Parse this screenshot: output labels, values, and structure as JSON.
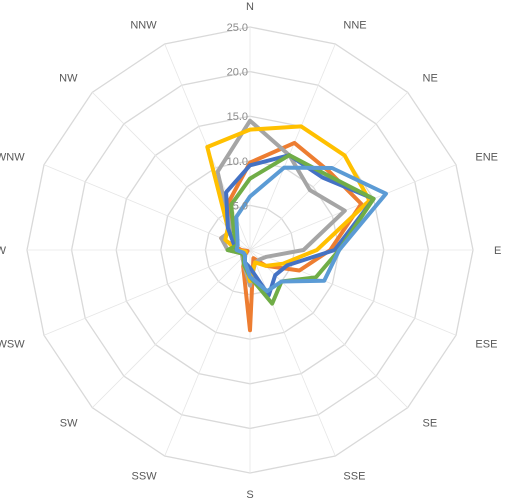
{
  "chart_data": {
    "type": "radar",
    "directions": [
      "N",
      "NNE",
      "NE",
      "ENE",
      "E",
      "ESE",
      "SE",
      "SSE",
      "S",
      "SSW",
      "SW",
      "WSW",
      "W",
      "WNW",
      "NW",
      "NNW"
    ],
    "ticks": [
      "5.0",
      "10.0",
      "15.0",
      "20.0",
      "25.0"
    ],
    "rmax": 25,
    "ring_count": 5,
    "grid": true,
    "legend": "none",
    "series": [
      {
        "color": "#ed7d31",
        "values": [
          9.8,
          13.0,
          12.5,
          13.5,
          9.0,
          6.0,
          2.5,
          1.0,
          9.0,
          2.0,
          0.8,
          0.3,
          1.0,
          3.5,
          3.0,
          6.0
        ]
      },
      {
        "color": "#a5a5a5",
        "values": [
          14.5,
          11.5,
          9.5,
          11.5,
          6.0,
          2.0,
          1.5,
          1.5,
          4.0,
          1.8,
          1.2,
          1.0,
          2.5,
          3.5,
          3.0,
          9.5
        ]
      },
      {
        "color": "#ffc000",
        "values": [
          13.5,
          15.0,
          15.0,
          14.5,
          7.5,
          4.0,
          2.5,
          1.5,
          3.5,
          1.5,
          1.0,
          0.5,
          1.5,
          3.0,
          3.5,
          12.5
        ]
      },
      {
        "color": "#4472c4",
        "values": [
          9.5,
          11.5,
          11.5,
          15.0,
          9.5,
          4.5,
          4.0,
          5.5,
          2.0,
          1.5,
          0.8,
          1.0,
          1.5,
          2.0,
          3.5,
          7.0
        ]
      },
      {
        "color": "#70ad47",
        "values": [
          8.0,
          11.5,
          12.0,
          15.0,
          10.0,
          8.0,
          5.0,
          6.5,
          3.0,
          1.8,
          1.0,
          1.0,
          2.5,
          1.5,
          2.5,
          5.5
        ]
      },
      {
        "color": "#5b9bd5",
        "values": [
          6.0,
          10.0,
          13.0,
          16.5,
          10.0,
          9.0,
          5.0,
          5.0,
          3.0,
          1.5,
          0.8,
          0.8,
          1.5,
          1.5,
          2.0,
          4.0
        ]
      }
    ]
  }
}
